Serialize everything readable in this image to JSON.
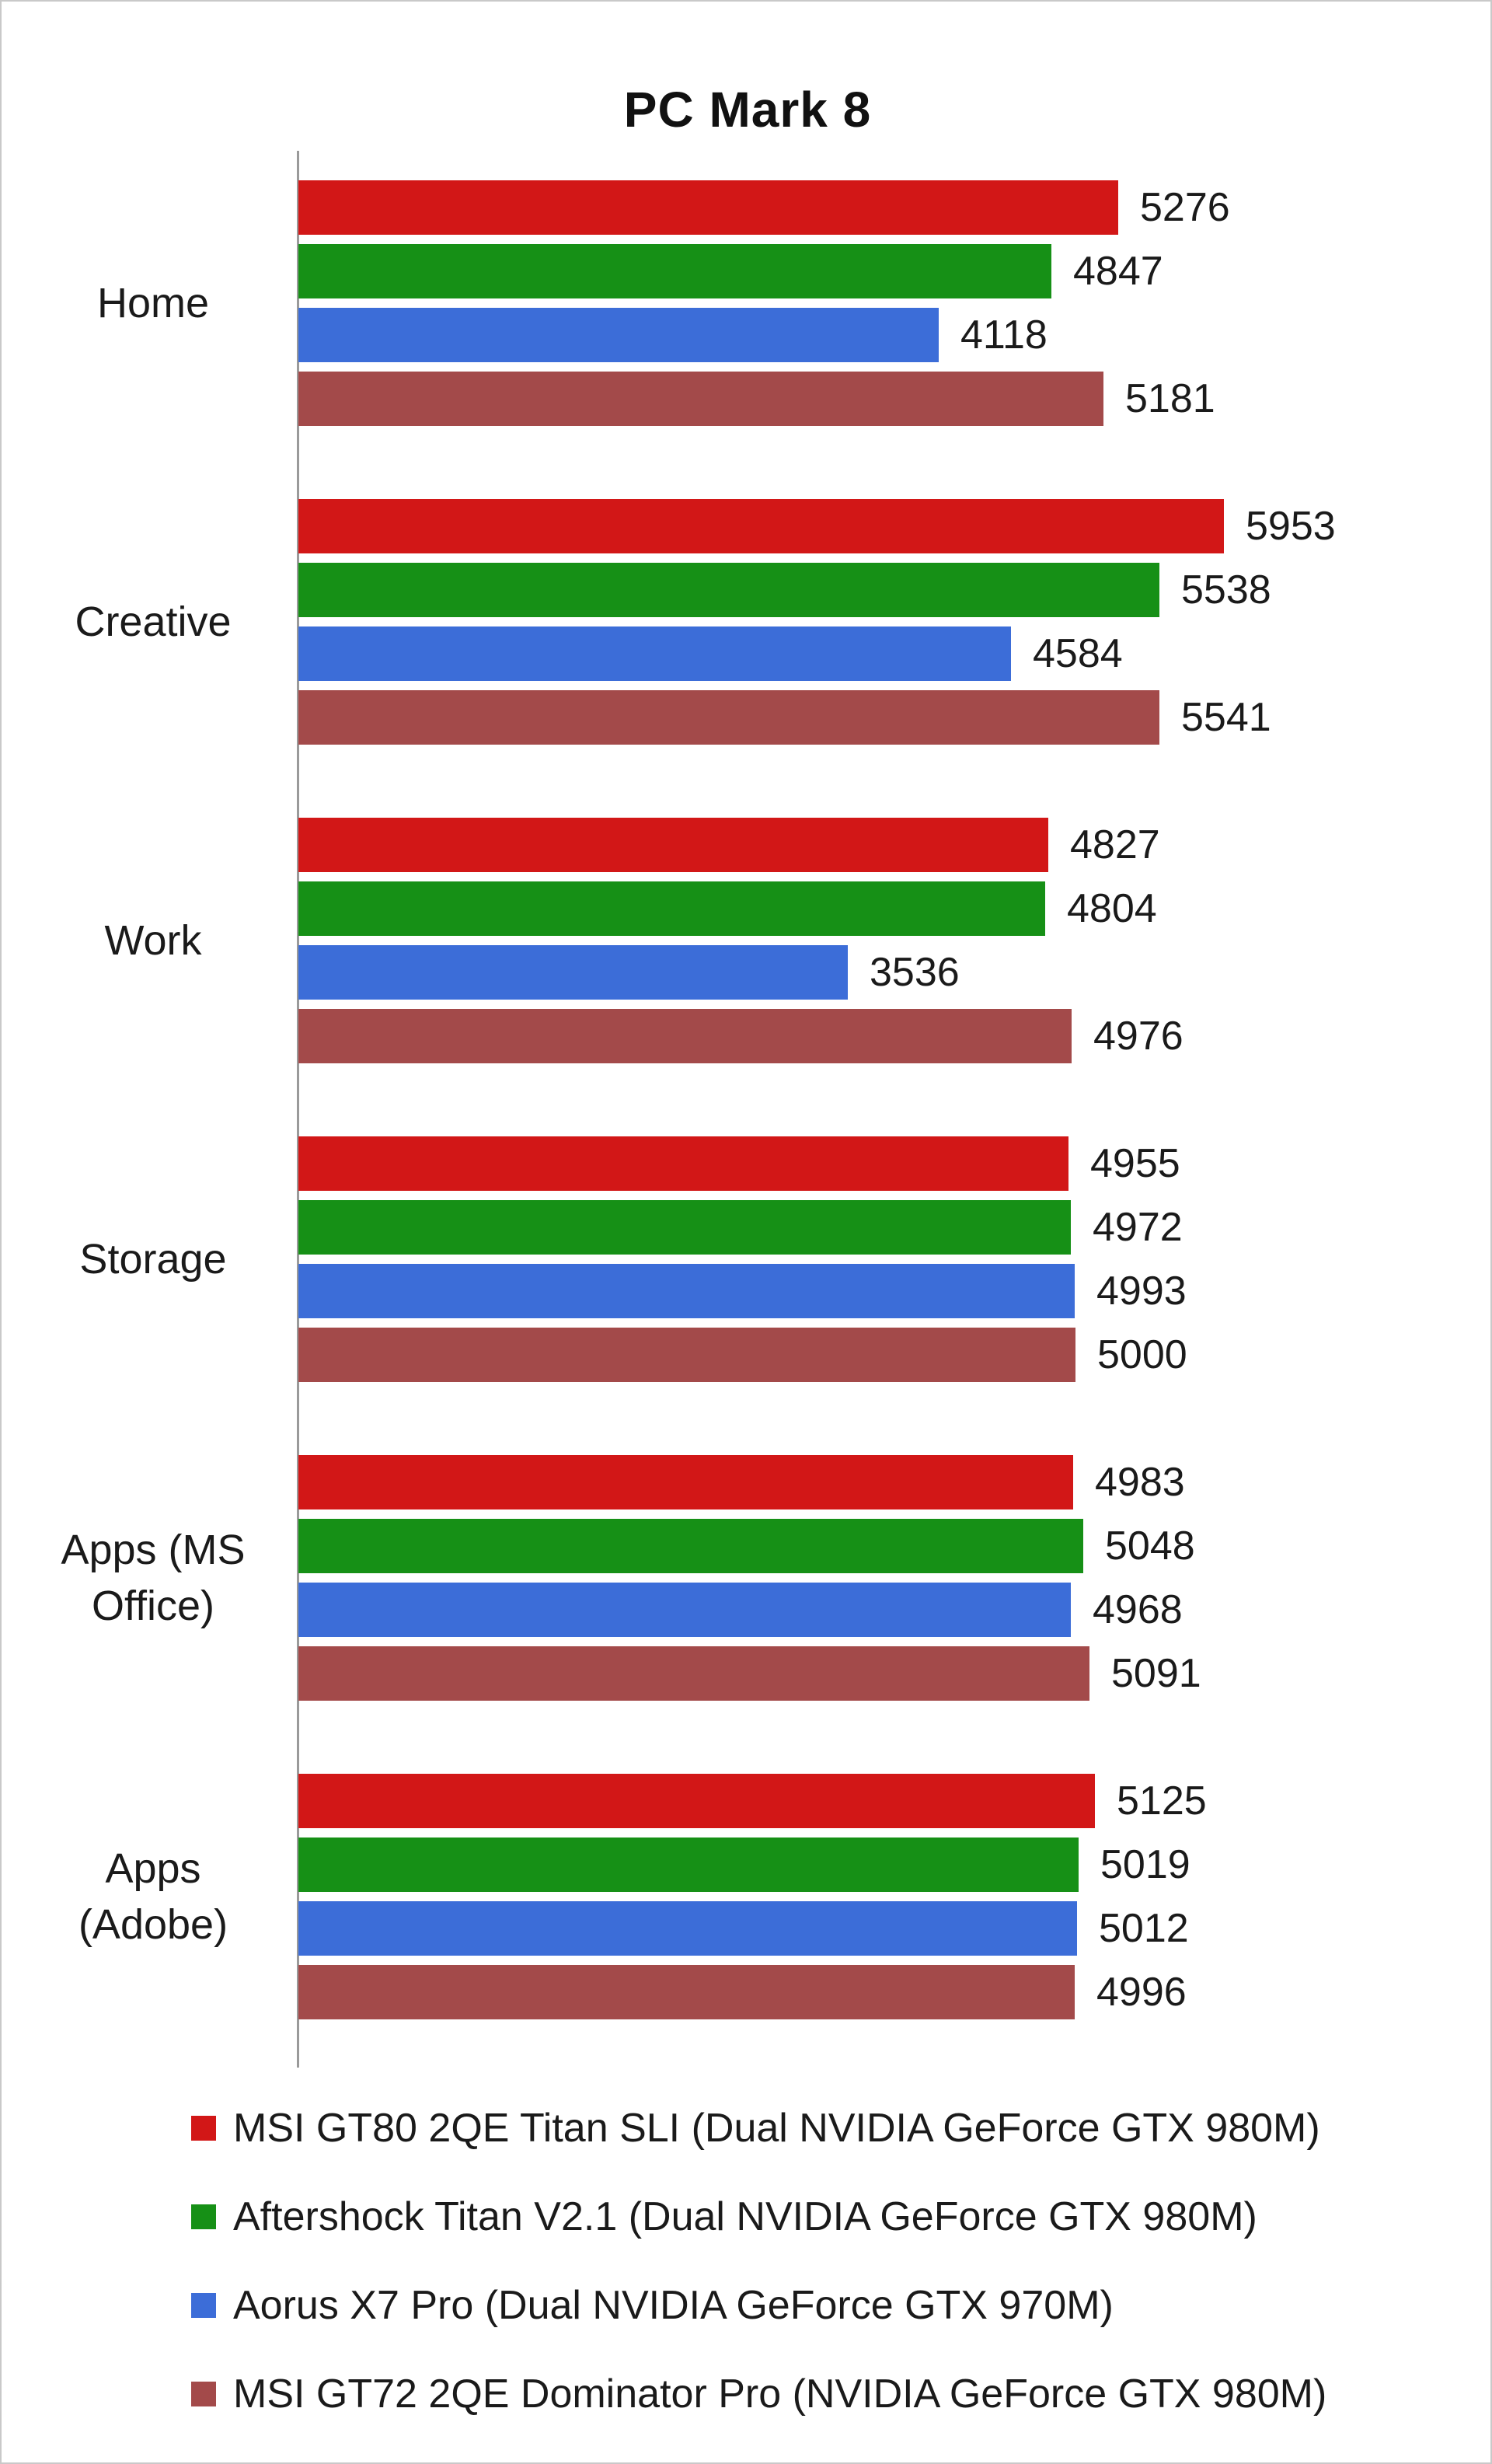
{
  "chart_data": {
    "type": "bar",
    "orientation": "horizontal",
    "title": "PC Mark 8",
    "categories": [
      "Home",
      "Creative",
      "Work",
      "Storage",
      "Apps (MS Office)",
      "Apps (Adobe)"
    ],
    "category_display": [
      [
        "Home"
      ],
      [
        "Creative"
      ],
      [
        "Work"
      ],
      [
        "Storage"
      ],
      [
        "Apps (MS",
        "Office)"
      ],
      [
        "Apps",
        "(Adobe)"
      ]
    ],
    "series": [
      {
        "name": "MSI GT80 2QE Titan SLI (Dual NVIDIA GeForce GTX 980M)",
        "color": "#d21717",
        "values": [
          5276,
          5953,
          4827,
          4955,
          4983,
          5125
        ]
      },
      {
        "name": "Aftershock Titan V2.1 (Dual NVIDIA GeForce GTX 980M)",
        "color": "#169016",
        "values": [
          4847,
          5538,
          4804,
          4972,
          5048,
          5019
        ]
      },
      {
        "name": "Aorus X7 Pro (Dual NVIDIA GeForce GTX 970M)",
        "color": "#3c6dd8",
        "values": [
          4118,
          4584,
          3536,
          4993,
          4968,
          5012
        ]
      },
      {
        "name": "MSI GT72 2QE Dominator Pro (NVIDIA GeForce GTX 980M)",
        "color": "#a34a4a",
        "values": [
          5181,
          5541,
          4976,
          5000,
          5091,
          4996
        ]
      }
    ],
    "xlim": [
      0,
      6200
    ],
    "grid": false,
    "value_labels": true,
    "legend_position": "bottom"
  }
}
